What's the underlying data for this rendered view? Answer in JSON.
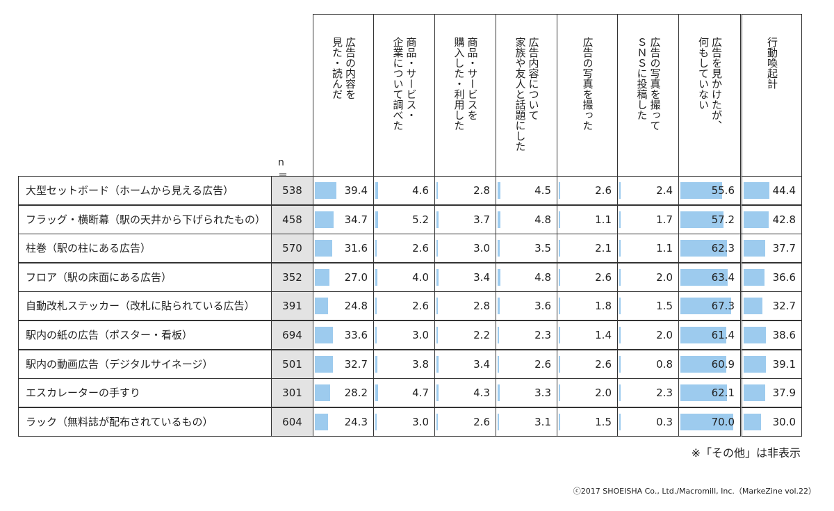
{
  "chart_data": {
    "type": "table",
    "n_label": "n＝",
    "columns": [
      "広告の内容を\n見た・読んだ",
      "商品・サービス・\n企業について調べた",
      "商品・サービスを\n購入した・利用した",
      "広告内容について\n家族や友人と話題にした",
      "広告の写真を撮った",
      "広告の写真を撮って\nＳＮＳに投稿した",
      "広告を見かけたが、\n何もしていない",
      "行動喚起計"
    ],
    "rows": [
      {
        "label": "大型セットボード（ホームから見える広告）",
        "n": "538",
        "values": [
          39.4,
          4.6,
          2.8,
          4.5,
          2.6,
          2.4,
          55.6,
          44.4
        ]
      },
      {
        "label": "フラッグ・横断幕（駅の天井から下げられたもの）",
        "n": "458",
        "values": [
          34.7,
          5.2,
          3.7,
          4.8,
          1.1,
          1.7,
          57.2,
          42.8
        ]
      },
      {
        "label": "柱巻（駅の柱にある広告）",
        "n": "570",
        "values": [
          31.6,
          2.6,
          3.0,
          3.5,
          2.1,
          1.1,
          62.3,
          37.7
        ]
      },
      {
        "label": "フロア（駅の床面にある広告）",
        "n": "352",
        "values": [
          27.0,
          4.0,
          3.4,
          4.8,
          2.6,
          2.0,
          63.4,
          36.6
        ]
      },
      {
        "label": "自動改札ステッカー（改札に貼られている広告）",
        "n": "391",
        "values": [
          24.8,
          2.6,
          2.8,
          3.6,
          1.8,
          1.5,
          67.3,
          32.7
        ]
      },
      {
        "label": "駅内の紙の広告（ポスター・看板）",
        "n": "694",
        "values": [
          33.6,
          3.0,
          2.2,
          2.3,
          1.4,
          2.0,
          61.4,
          38.6
        ]
      },
      {
        "label": "駅内の動画広告（デジタルサイネージ）",
        "n": "501",
        "values": [
          32.7,
          3.8,
          3.4,
          2.6,
          2.6,
          0.8,
          60.9,
          39.1
        ]
      },
      {
        "label": "エスカレーターの手すり",
        "n": "301",
        "values": [
          28.2,
          4.7,
          4.3,
          3.3,
          2.0,
          2.3,
          62.1,
          37.9
        ]
      },
      {
        "label": "ラック（無料誌が配布されているもの）",
        "n": "604",
        "values": [
          24.3,
          3.0,
          2.6,
          3.1,
          1.5,
          0.3,
          70.0,
          30.0
        ]
      }
    ],
    "bar_color": "#9dcbee"
  },
  "footnote": "※「その他」は非表示",
  "copyright": "ⓒ2017 SHOEISHA Co., Ltd./Macromill, Inc.（MarkeZine vol.22）"
}
